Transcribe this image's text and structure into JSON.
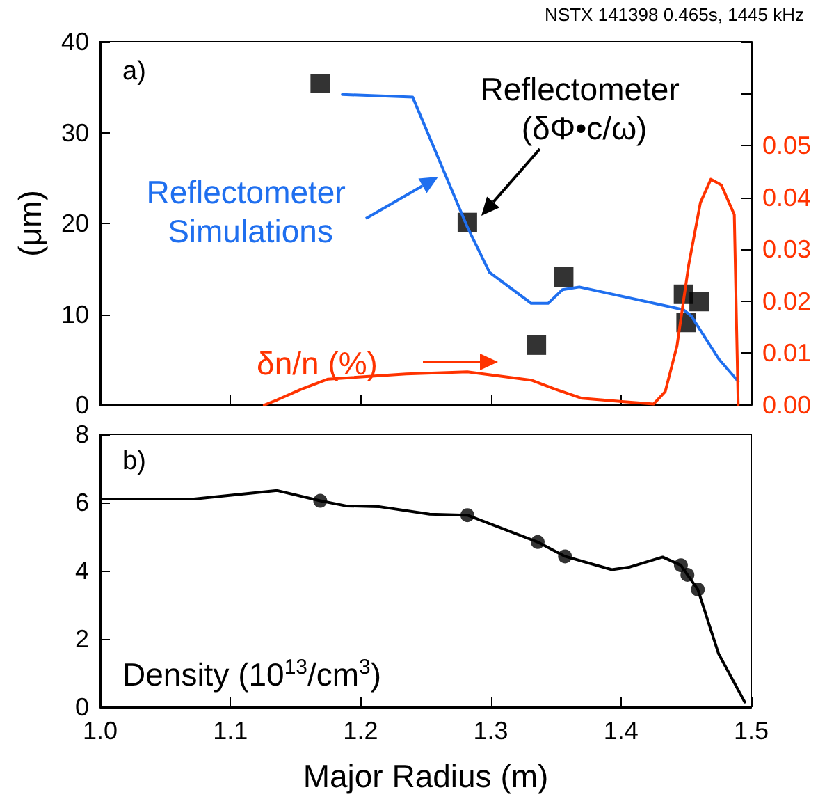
{
  "chart_data": [
    {
      "type": "line",
      "title": "NSTX 141398 0.465s, 1445 kHz",
      "ylabel": "(μm)",
      "annotations": [
        "a)"
      ],
      "xlim": [
        1.0,
        1.5
      ],
      "xticks": [
        {
          "value": 1.0,
          "label": null
        },
        {
          "value": 1.1,
          "label": null
        },
        {
          "value": 1.2,
          "label": null
        },
        {
          "value": 1.3,
          "label": null
        },
        {
          "value": 1.4,
          "label": null
        },
        {
          "value": 1.5,
          "label": null
        }
      ],
      "ylim": [
        0,
        40
      ],
      "yticks": [
        0,
        10,
        20,
        30,
        40
      ],
      "y2lim": [
        0,
        0.07
      ],
      "y2ticks": [
        {
          "value": 0,
          "label": "0.00"
        },
        {
          "value": 0.01,
          "label": "0.01"
        },
        {
          "value": 0.02,
          "label": "0.02"
        },
        {
          "value": 0.03,
          "label": "0.03"
        },
        {
          "value": 0.04,
          "label": "0.04"
        },
        {
          "value": 0.05,
          "label": "0.05"
        },
        {
          "value": 0.06,
          "label": null
        },
        {
          "value": 0.07,
          "label": null
        }
      ],
      "tick_labels": "y",
      "grid": false,
      "legend": "left",
      "series": [
        {
          "name": "Reflectometer Simulations",
          "type": "line",
          "marker": "none",
          "color": "#1f6fef",
          "x": [
            1.186,
            1.24,
            1.282,
            1.299,
            1.331,
            1.344,
            1.355,
            1.368,
            1.448,
            1.454,
            1.475,
            1.49
          ],
          "values": [
            34.2,
            33.9,
            19.6,
            14.6,
            11.2,
            11.2,
            12.7,
            13.0,
            10.5,
            9.8,
            5.1,
            2.6
          ]
        },
        {
          "name": "Reflectometer (δΦ•c/ω)",
          "type": "scatter",
          "marker": "square",
          "color": "#000000",
          "x": [
            1.169,
            1.282,
            1.335,
            1.356,
            1.448,
            1.45,
            1.46
          ],
          "values": [
            35.4,
            20.1,
            6.6,
            14.1,
            12.2,
            9.1,
            11.4
          ]
        },
        {
          "name": "δn/n (%)",
          "type": "line",
          "marker": "none",
          "axis": "y2",
          "color": "#ff3300",
          "x": [
            1.126,
            1.136,
            1.154,
            1.175,
            1.235,
            1.282,
            1.331,
            1.349,
            1.37,
            1.399,
            1.425,
            1.434,
            1.443,
            1.452,
            1.461,
            1.469,
            1.477,
            1.487,
            1.49
          ],
          "values": [
            0,
            0.001,
            0.003,
            0.005,
            0.006,
            0.0064,
            0.0048,
            0.0031,
            0.0013,
            0.0007,
            0.0002,
            0.0026,
            0.0114,
            0.027,
            0.039,
            0.0435,
            0.0424,
            0.0367,
            0
          ]
        }
      ]
    },
    {
      "type": "line",
      "xlabel": "Major Radius (m)",
      "annotations": [
        "b)",
        "Density (10$^{13}$/cm$^{3}$)"
      ],
      "xlim": [
        1.0,
        1.5
      ],
      "xticks": [
        {
          "value": 1.0,
          "label": "1.0"
        },
        {
          "value": 1.1,
          "label": "1.1"
        },
        {
          "value": 1.2,
          "label": "1.2"
        },
        {
          "value": 1.3,
          "label": "1.3"
        },
        {
          "value": 1.4,
          "label": "1.4"
        },
        {
          "value": 1.5,
          "label": "1.5"
        }
      ],
      "ylim": [
        0,
        8
      ],
      "yticks": [
        0,
        2,
        4,
        6,
        8
      ],
      "grid": false,
      "series": [
        {
          "type": "line",
          "marker": "none",
          "color": "#000000",
          "x": [
            1.0,
            1.072,
            1.136,
            1.169,
            1.189,
            1.214,
            1.253,
            1.282,
            1.336,
            1.357,
            1.393,
            1.406,
            1.432,
            1.446,
            1.451,
            1.459,
            1.475,
            1.495
          ],
          "values": [
            6.1,
            6.1,
            6.35,
            6.05,
            5.9,
            5.88,
            5.66,
            5.63,
            4.84,
            4.42,
            4.03,
            4.1,
            4.4,
            4.16,
            3.88,
            3.45,
            1.56,
            0.15
          ]
        },
        {
          "type": "scatter",
          "marker": "circle",
          "color": "#000000",
          "x": [
            1.169,
            1.282,
            1.336,
            1.357,
            1.446,
            1.451,
            1.459
          ],
          "values": [
            6.05,
            5.63,
            4.84,
            4.42,
            4.16,
            3.88,
            3.45
          ]
        }
      ]
    }
  ]
}
